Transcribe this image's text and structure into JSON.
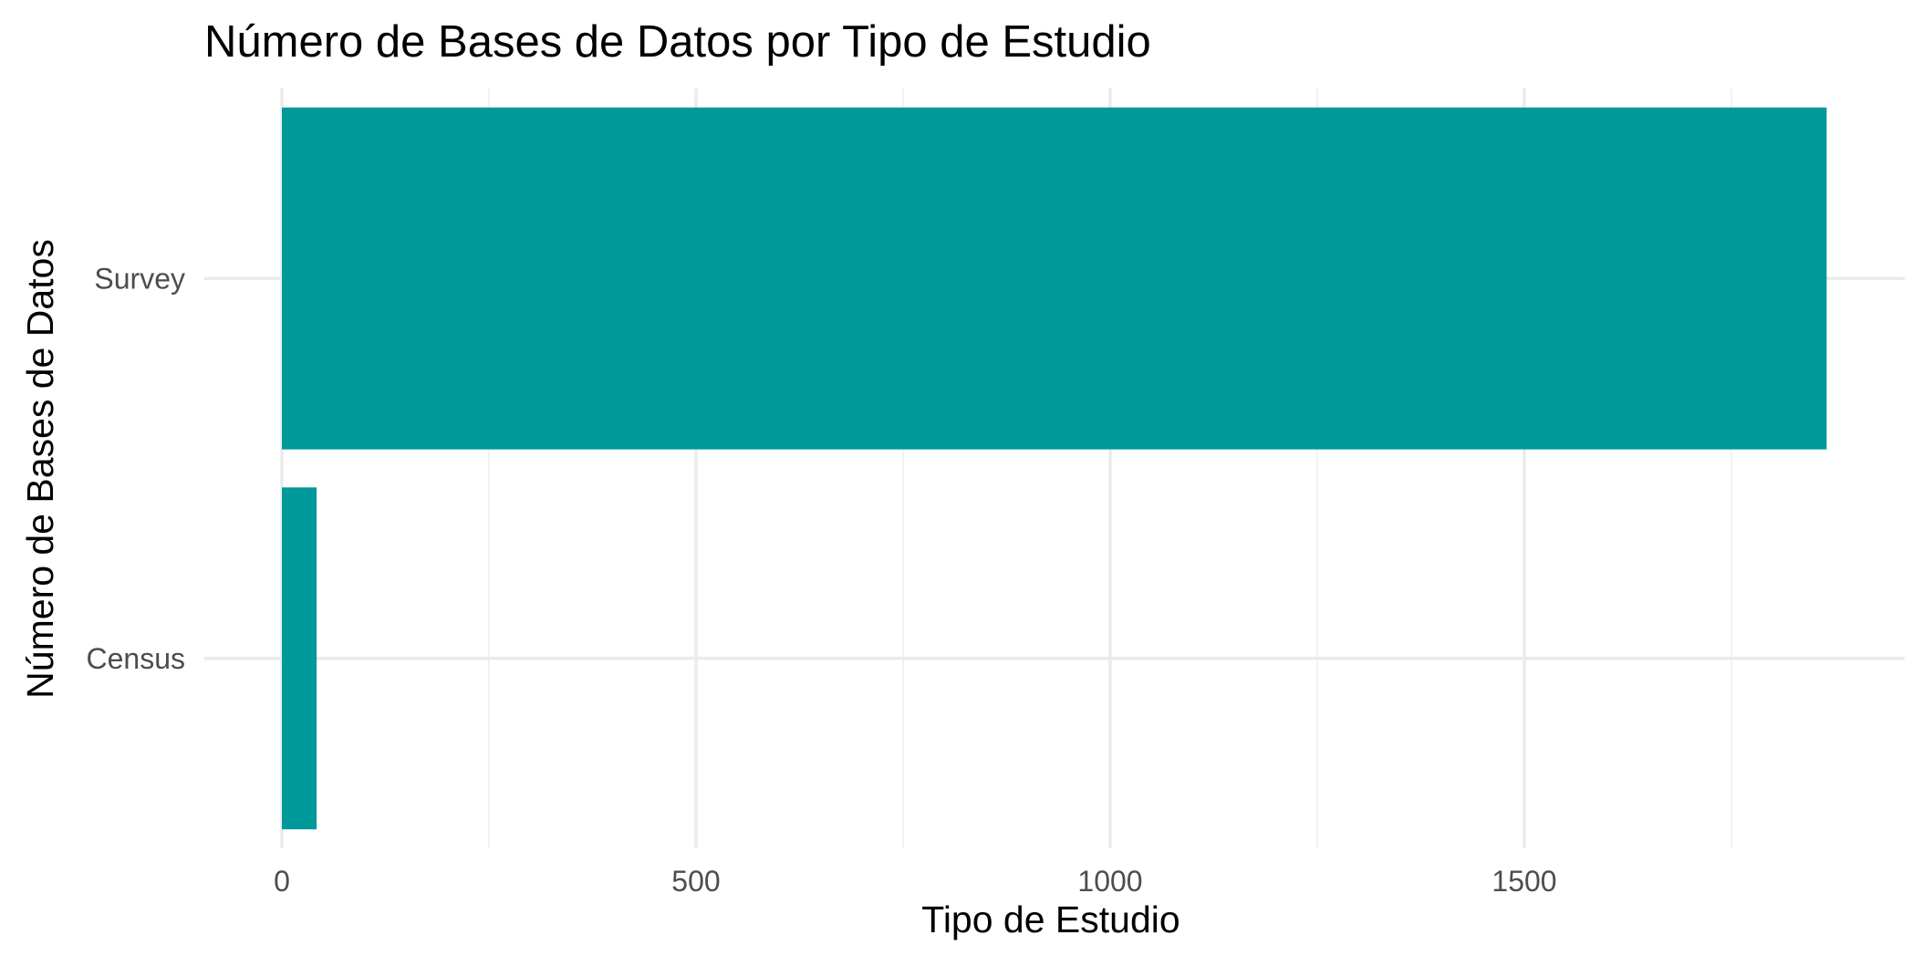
{
  "chart_data": {
    "type": "bar",
    "orientation": "horizontal",
    "title": "Número de Bases de Datos por Tipo de Estudio",
    "xlabel": "Tipo de Estudio",
    "ylabel": "Número de Bases de Datos",
    "categories": [
      "Census",
      "Survey"
    ],
    "values": [
      42,
      1865
    ],
    "xlim": [
      0,
      1950
    ],
    "x_ticks": [
      0,
      500,
      1000,
      1500
    ],
    "x_tick_labels": [
      "0",
      "500",
      "1000",
      "1500"
    ],
    "x_minor_ticks": [
      250,
      750,
      1250,
      1750
    ],
    "bar_color": "#009999",
    "grid": true,
    "legend": "none"
  }
}
